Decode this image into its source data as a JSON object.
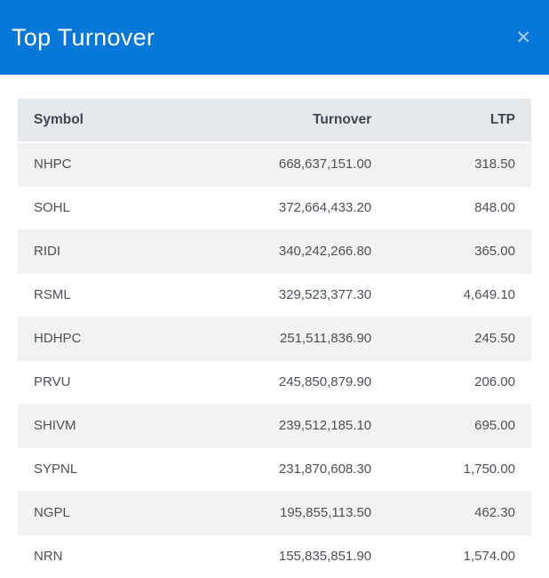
{
  "theme": {
    "header_bg": "#0778d7",
    "header_text": "#ffffff",
    "close_icon_color": "#a5cbee",
    "table_header_bg": "#e5e9ec",
    "table_header_text": "#3e4852",
    "stripe_row_bg": "#f2f2f0",
    "row_text": "#4b5158"
  },
  "modal": {
    "title": "Top Turnover",
    "close_icon": "✕"
  },
  "table": {
    "columns": [
      "Symbol",
      "Turnover",
      "LTP"
    ],
    "rows": [
      {
        "symbol": "NHPC",
        "turnover": "668,637,151.00",
        "ltp": "318.50"
      },
      {
        "symbol": "SOHL",
        "turnover": "372,664,433.20",
        "ltp": "848.00"
      },
      {
        "symbol": "RIDI",
        "turnover": "340,242,266.80",
        "ltp": "365.00"
      },
      {
        "symbol": "RSML",
        "turnover": "329,523,377.30",
        "ltp": "4,649.10"
      },
      {
        "symbol": "HDHPC",
        "turnover": "251,511,836.90",
        "ltp": "245.50"
      },
      {
        "symbol": "PRVU",
        "turnover": "245,850,879.90",
        "ltp": "206.00"
      },
      {
        "symbol": "SHIVM",
        "turnover": "239,512,185.10",
        "ltp": "695.00"
      },
      {
        "symbol": "SYPNL",
        "turnover": "231,870,608.30",
        "ltp": "1,750.00"
      },
      {
        "symbol": "NGPL",
        "turnover": "195,855,113.50",
        "ltp": "462.30"
      },
      {
        "symbol": "NRN",
        "turnover": "155,835,851.90",
        "ltp": "1,574.00"
      }
    ]
  }
}
